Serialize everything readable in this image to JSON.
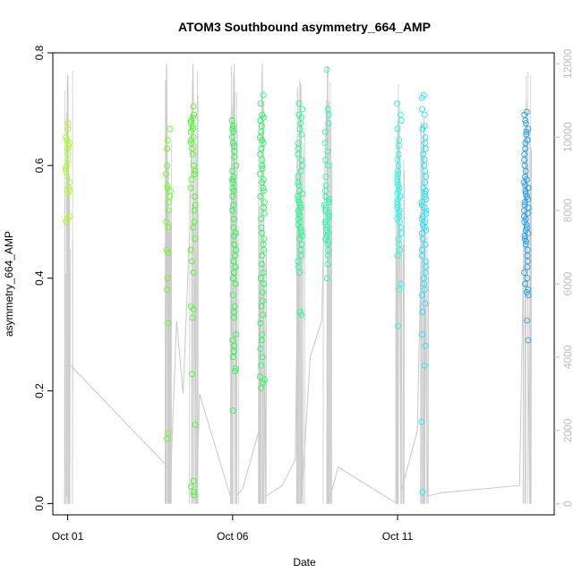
{
  "chart_data": {
    "type": "scatter",
    "title": "ATOM3 Southbound asymmetry_664_AMP",
    "xlabel": "Date",
    "ylabel": "asymmetry_664_AMP",
    "x_ticks": [
      {
        "label": "Oct 01",
        "day": 1
      },
      {
        "label": "Oct 06",
        "day": 6
      },
      {
        "label": "Oct 11",
        "day": 11
      }
    ],
    "xlim_days": [
      0.55,
      15.75
    ],
    "ylim": [
      -0.02,
      0.8
    ],
    "y_ticks": [
      0.0,
      0.2,
      0.4,
      0.6,
      0.8
    ],
    "y_tick_labels": [
      "0.0",
      "0.2",
      "0.4",
      "0.6",
      "0.8"
    ],
    "right_axis": {
      "ylim": [
        -300,
        12300
      ],
      "ticks": [
        0,
        2000,
        4000,
        6000,
        8000,
        10000,
        12000
      ],
      "tick_labels": [
        "0",
        "2000",
        "4000",
        "6000",
        "8000",
        "10000",
        "12000"
      ],
      "color": "#bebebe"
    },
    "point_style": "open circles colored by time (rainbow: yellow-green to blue)",
    "grey_line": "series on right axis, drawn as light grey line",
    "bursts": [
      {
        "day": 1.0,
        "color": "#a6ff1a",
        "values": [
          0.675,
          0.665,
          0.65,
          0.645,
          0.64,
          0.635,
          0.63,
          0.62,
          0.61,
          0.6,
          0.595,
          0.59,
          0.58,
          0.57,
          0.56,
          0.555,
          0.55,
          0.51,
          0.505,
          0.5
        ]
      },
      {
        "day": 4.05,
        "color": "#66ff1a",
        "values": [
          0.665,
          0.645,
          0.63,
          0.6,
          0.585,
          0.565,
          0.56,
          0.555,
          0.545,
          0.535,
          0.52,
          0.5,
          0.49,
          0.45,
          0.445,
          0.4,
          0.38,
          0.32,
          0.125,
          0.115
        ]
      },
      {
        "day": 4.8,
        "color": "#40ff1a",
        "values": [
          0.705,
          0.69,
          0.685,
          0.68,
          0.675,
          0.67,
          0.665,
          0.66,
          0.65,
          0.645,
          0.64,
          0.63,
          0.62,
          0.6,
          0.59,
          0.585,
          0.575,
          0.56,
          0.545,
          0.53,
          0.52,
          0.5,
          0.49,
          0.47,
          0.45,
          0.43,
          0.41,
          0.35,
          0.345,
          0.33,
          0.23,
          0.14,
          0.04,
          0.03,
          0.02,
          0.015
        ]
      },
      {
        "day": 6.05,
        "color": "#1aff40",
        "values": [
          0.68,
          0.67,
          0.665,
          0.66,
          0.65,
          0.64,
          0.635,
          0.625,
          0.615,
          0.6,
          0.59,
          0.58,
          0.575,
          0.57,
          0.56,
          0.555,
          0.545,
          0.53,
          0.52,
          0.505,
          0.49,
          0.48,
          0.475,
          0.46,
          0.45,
          0.44,
          0.43,
          0.42,
          0.41,
          0.4,
          0.39,
          0.37,
          0.35,
          0.34,
          0.33,
          0.3,
          0.29,
          0.28,
          0.27,
          0.26,
          0.24,
          0.235,
          0.165
        ]
      },
      {
        "day": 6.9,
        "color": "#1aff59",
        "values": [
          0.725,
          0.71,
          0.69,
          0.685,
          0.68,
          0.67,
          0.66,
          0.65,
          0.645,
          0.64,
          0.63,
          0.62,
          0.61,
          0.6,
          0.595,
          0.585,
          0.575,
          0.57,
          0.56,
          0.555,
          0.545,
          0.535,
          0.525,
          0.515,
          0.505,
          0.49,
          0.48,
          0.47,
          0.46,
          0.45,
          0.44,
          0.425,
          0.41,
          0.4,
          0.39,
          0.375,
          0.36,
          0.35,
          0.335,
          0.32,
          0.3,
          0.29,
          0.275,
          0.26,
          0.245,
          0.225,
          0.22,
          0.215,
          0.205
        ]
      },
      {
        "day": 8.05,
        "color": "#1aff8c",
        "values": [
          0.71,
          0.7,
          0.69,
          0.685,
          0.675,
          0.665,
          0.655,
          0.64,
          0.63,
          0.62,
          0.61,
          0.6,
          0.59,
          0.58,
          0.57,
          0.565,
          0.555,
          0.55,
          0.545,
          0.54,
          0.535,
          0.53,
          0.525,
          0.52,
          0.515,
          0.51,
          0.505,
          0.5,
          0.495,
          0.49,
          0.485,
          0.48,
          0.475,
          0.47,
          0.46,
          0.45,
          0.44,
          0.43,
          0.42,
          0.41,
          0.34,
          0.335
        ]
      },
      {
        "day": 8.85,
        "color": "#1affa6",
        "values": [
          0.77,
          0.7,
          0.69,
          0.675,
          0.66,
          0.64,
          0.625,
          0.61,
          0.6,
          0.58,
          0.565,
          0.555,
          0.545,
          0.54,
          0.535,
          0.53,
          0.525,
          0.52,
          0.515,
          0.51,
          0.505,
          0.5,
          0.495,
          0.49,
          0.485,
          0.48,
          0.475,
          0.47,
          0.465,
          0.46,
          0.45,
          0.44,
          0.425,
          0.4
        ]
      },
      {
        "day": 11.05,
        "color": "#1affe6",
        "values": [
          0.71,
          0.69,
          0.68,
          0.665,
          0.645,
          0.635,
          0.62,
          0.61,
          0.6,
          0.59,
          0.585,
          0.58,
          0.575,
          0.57,
          0.565,
          0.56,
          0.555,
          0.55,
          0.545,
          0.54,
          0.535,
          0.53,
          0.525,
          0.52,
          0.515,
          0.51,
          0.505,
          0.5,
          0.49,
          0.48,
          0.47,
          0.46,
          0.45,
          0.44,
          0.39,
          0.38,
          0.315
        ]
      },
      {
        "day": 11.8,
        "color": "#1ae6ff",
        "values": [
          0.725,
          0.72,
          0.7,
          0.69,
          0.67,
          0.665,
          0.65,
          0.64,
          0.63,
          0.62,
          0.61,
          0.6,
          0.59,
          0.58,
          0.57,
          0.56,
          0.555,
          0.55,
          0.545,
          0.54,
          0.535,
          0.53,
          0.525,
          0.52,
          0.515,
          0.51,
          0.505,
          0.5,
          0.495,
          0.49,
          0.485,
          0.48,
          0.47,
          0.46,
          0.45,
          0.44,
          0.43,
          0.42,
          0.41,
          0.4,
          0.39,
          0.38,
          0.37,
          0.355,
          0.34,
          0.3,
          0.28,
          0.245,
          0.145,
          0.02
        ]
      },
      {
        "day": 14.9,
        "color": "#1a9fff",
        "values": [
          0.695,
          0.69,
          0.68,
          0.675,
          0.665,
          0.66,
          0.655,
          0.645,
          0.64,
          0.63,
          0.62,
          0.61,
          0.6,
          0.59,
          0.58,
          0.575,
          0.57,
          0.565,
          0.56,
          0.555,
          0.55,
          0.545,
          0.54,
          0.535,
          0.53,
          0.525,
          0.52,
          0.515,
          0.51,
          0.505,
          0.5,
          0.495,
          0.49,
          0.485,
          0.48,
          0.475,
          0.47,
          0.465,
          0.46,
          0.45,
          0.44,
          0.43,
          0.42,
          0.41,
          0.4,
          0.39,
          0.38,
          0.375,
          0.37,
          0.325,
          0.29
        ]
      }
    ],
    "grey_series": {
      "points": [
        [
          0.97,
          200
        ],
        [
          0.99,
          11500
        ],
        [
          1.01,
          11700
        ],
        [
          1.03,
          200
        ],
        [
          1.06,
          3800
        ],
        [
          4.05,
          1000
        ],
        [
          4.0,
          12000
        ],
        [
          4.1,
          200
        ],
        [
          4.3,
          5000
        ],
        [
          4.5,
          3000
        ],
        [
          4.7,
          7500
        ],
        [
          4.8,
          12000
        ],
        [
          4.9,
          0
        ],
        [
          5.0,
          3000
        ],
        [
          6.0,
          0
        ],
        [
          6.05,
          12000
        ],
        [
          6.1,
          200
        ],
        [
          6.3,
          400
        ],
        [
          6.8,
          2000
        ],
        [
          6.9,
          12000
        ],
        [
          7.0,
          200
        ],
        [
          7.5,
          500
        ],
        [
          7.9,
          1200
        ],
        [
          8.05,
          11500
        ],
        [
          8.1,
          200
        ],
        [
          8.35,
          4000
        ],
        [
          8.7,
          5000
        ],
        [
          8.85,
          11000
        ],
        [
          8.9,
          0
        ],
        [
          9.2,
          1000
        ],
        [
          11.0,
          0
        ],
        [
          11.05,
          11000
        ],
        [
          11.1,
          300
        ],
        [
          11.6,
          2000
        ],
        [
          11.8,
          10500
        ],
        [
          11.9,
          200
        ],
        [
          12.3,
          300
        ],
        [
          14.7,
          500
        ],
        [
          14.9,
          11000
        ],
        [
          15.0,
          200
        ]
      ]
    }
  }
}
